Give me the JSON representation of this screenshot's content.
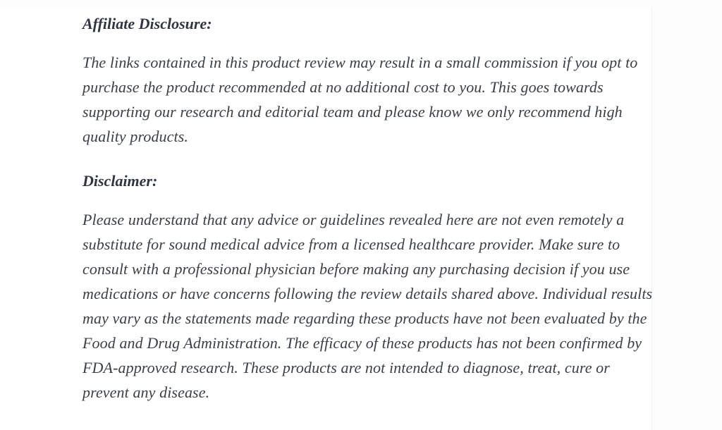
{
  "colors": {
    "background": "#ffffff",
    "heading_text": "#2f3640",
    "body_text": "#3a4045"
  },
  "content": {
    "sections": [
      {
        "heading": "Affiliate Disclosure:",
        "body": "The links contained in this product review may result in a small commission if you opt to purchase the product recommended at no additional cost to you. This goes towards supporting our research and editorial team and please know we only recommend high quality products."
      },
      {
        "heading": "Disclaimer:",
        "body": "Please understand that any advice or guidelines revealed here are not even remotely a substitute for sound medical advice from a licensed healthcare provider. Make sure to consult with a professional physician before making any purchasing decision if you use medications or have concerns following the review details shared above. Individual results may vary as the statements made regarding these products have not been evaluated by the Food and Drug Administration. The efficacy of these products has not been confirmed by FDA-approved research. These products are not intended to diagnose, treat, cure or prevent any disease."
      }
    ]
  }
}
